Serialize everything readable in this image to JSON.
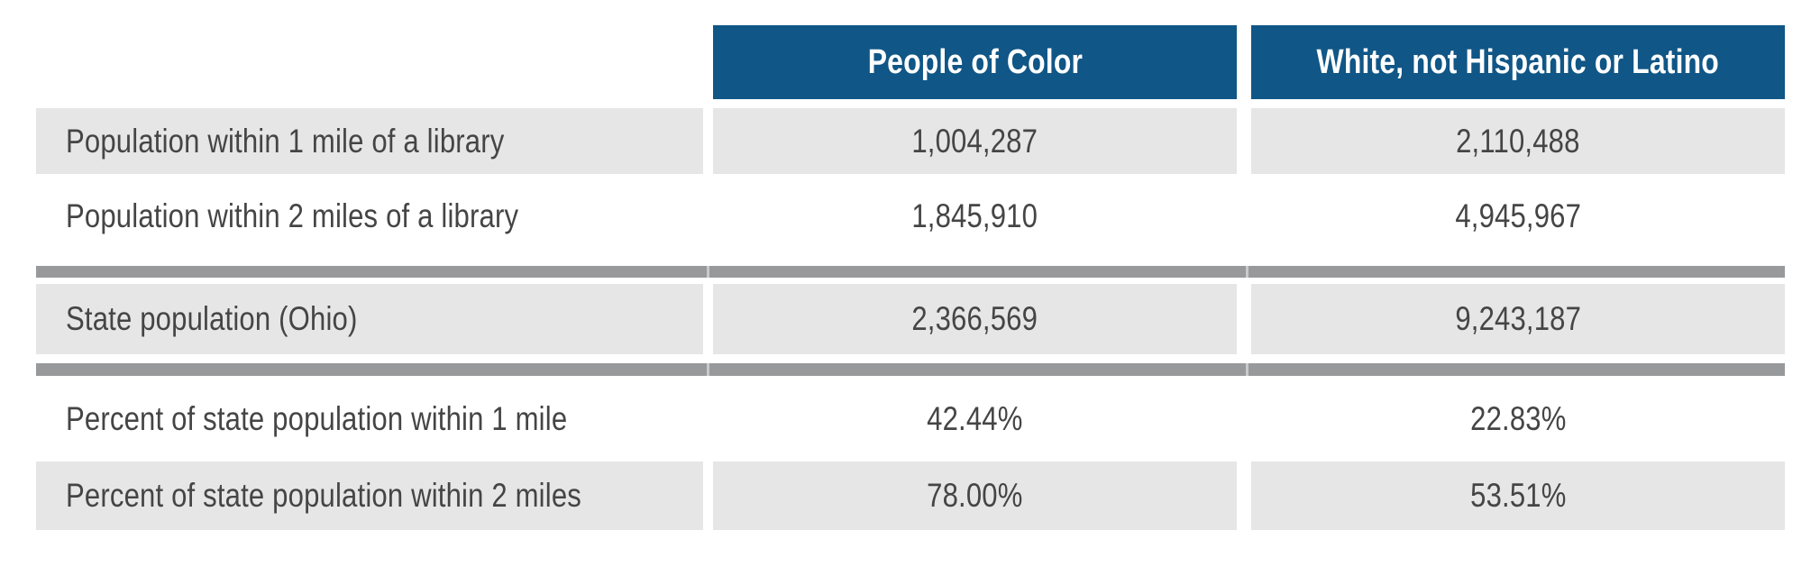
{
  "colors": {
    "header_bg": "#105686",
    "header_text": "#ffffff",
    "row_shade_bg": "#e6e6e6",
    "divider": "#97999b",
    "divider_seam": "#c9cacc",
    "text": "#454545"
  },
  "table": {
    "header": {
      "people_of_color": "People of Color",
      "white_not_hispanic": "White, not Hispanic or Latino"
    },
    "rows": [
      {
        "label": "Population within 1 mile of a library",
        "people_of_color": "1,004,287",
        "white_not_hispanic": "2,110,488"
      },
      {
        "label": "Population within 2 miles of a library",
        "people_of_color": "1,845,910",
        "white_not_hispanic": "4,945,967"
      },
      {
        "label": "State population (Ohio)",
        "people_of_color": "2,366,569",
        "white_not_hispanic": "9,243,187"
      },
      {
        "label": "Percent of state population within 1 mile",
        "people_of_color": "42.44%",
        "white_not_hispanic": "22.83%"
      },
      {
        "label": "Percent of state population within 2 miles",
        "people_of_color": "78.00%",
        "white_not_hispanic": "53.51%"
      }
    ]
  },
  "chart_data": {
    "type": "table",
    "columns": [
      "",
      "People of Color",
      "White, not Hispanic or Latino"
    ],
    "rows": [
      {
        "label": "Population within 1 mile of a library",
        "values": [
          1004287,
          2110488
        ]
      },
      {
        "label": "Population within 2 miles of a library",
        "values": [
          1845910,
          4945967
        ]
      },
      {
        "label": "State population (Ohio)",
        "values": [
          2366569,
          9243187
        ]
      },
      {
        "label": "Percent of state population within 1 mile",
        "values": [
          42.44,
          22.83
        ],
        "unit": "%"
      },
      {
        "label": "Percent of state population within 2 miles",
        "values": [
          78.0,
          53.51
        ],
        "unit": "%"
      }
    ],
    "layout": {
      "shaded_row_indexes": [
        0,
        2,
        4
      ],
      "section_dividers_after_row_indexes": [
        1,
        2
      ],
      "value_columns_aligned": "center",
      "label_column_aligned": "left"
    }
  }
}
